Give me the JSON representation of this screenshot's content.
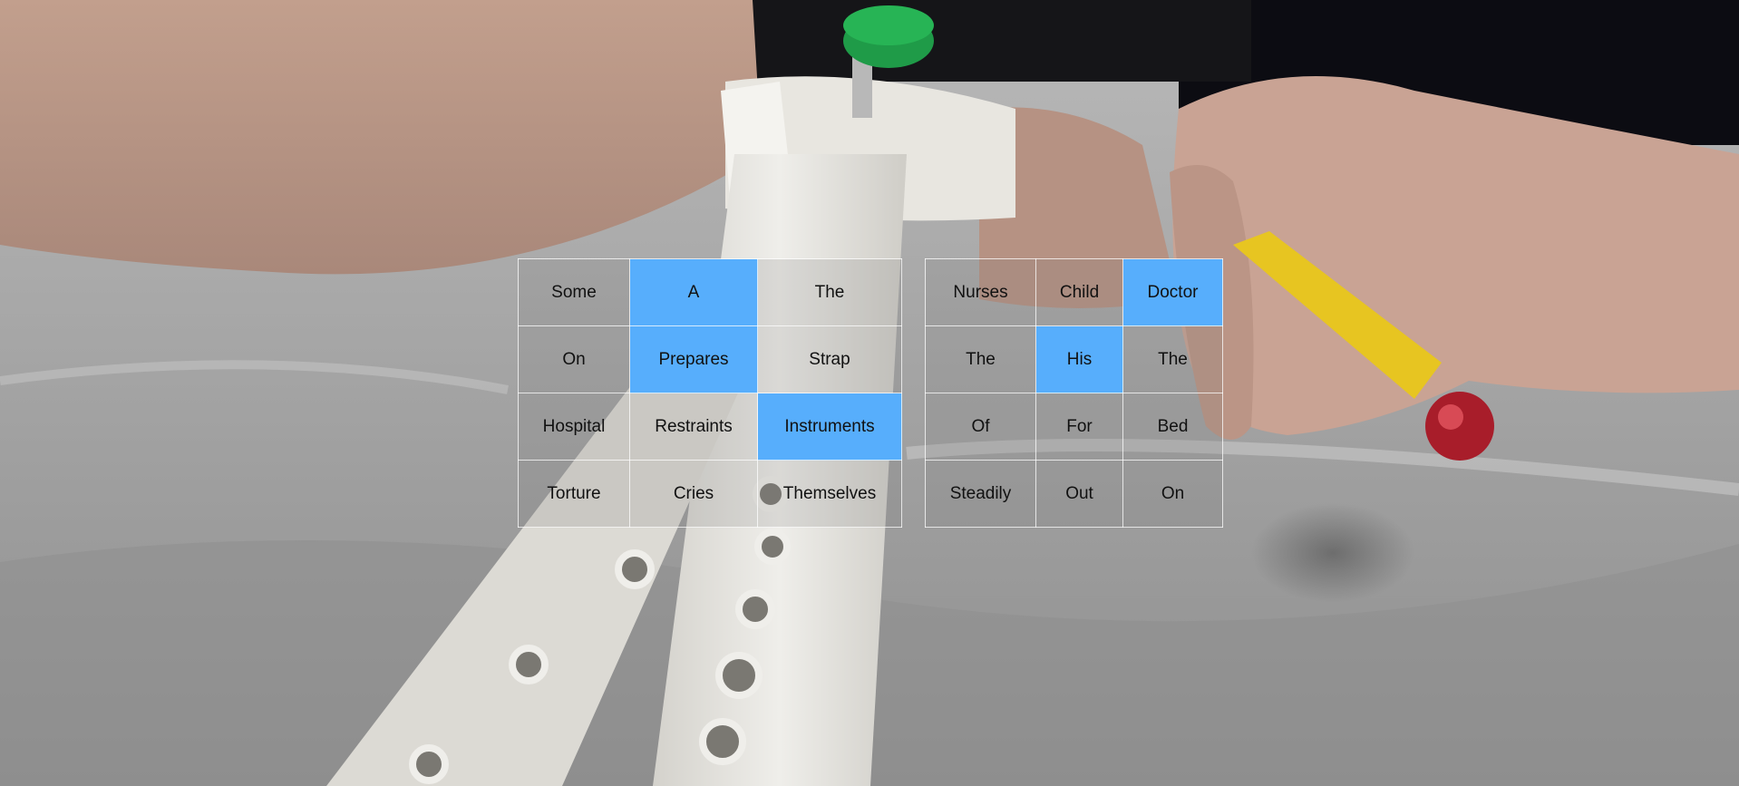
{
  "colors": {
    "selected": "#57aefc",
    "cell_border": "#ffffff",
    "text": "#111111"
  },
  "grids": {
    "left": {
      "rows": [
        [
          {
            "label": "Some",
            "selected": false
          },
          {
            "label": "A",
            "selected": true
          },
          {
            "label": "The",
            "selected": false
          }
        ],
        [
          {
            "label": "On",
            "selected": false
          },
          {
            "label": "Prepares",
            "selected": true
          },
          {
            "label": "Strap",
            "selected": false
          }
        ],
        [
          {
            "label": "Hospital",
            "selected": false
          },
          {
            "label": "Restraints",
            "selected": false
          },
          {
            "label": "Instruments",
            "selected": true
          }
        ],
        [
          {
            "label": "Torture",
            "selected": false
          },
          {
            "label": "Cries",
            "selected": false
          },
          {
            "label": "Themselves",
            "selected": false
          }
        ]
      ]
    },
    "right": {
      "rows": [
        [
          {
            "label": "Nurses",
            "selected": false
          },
          {
            "label": "Child",
            "selected": false
          },
          {
            "label": "Doctor",
            "selected": true
          }
        ],
        [
          {
            "label": "The",
            "selected": false
          },
          {
            "label": "His",
            "selected": true
          },
          {
            "label": "The",
            "selected": false
          }
        ],
        [
          {
            "label": "Of",
            "selected": false
          },
          {
            "label": "For",
            "selected": false
          },
          {
            "label": "Bed",
            "selected": false
          }
        ],
        [
          {
            "label": "Steadily",
            "selected": false
          },
          {
            "label": "Out",
            "selected": false
          },
          {
            "label": "On",
            "selected": false
          }
        ]
      ]
    }
  }
}
